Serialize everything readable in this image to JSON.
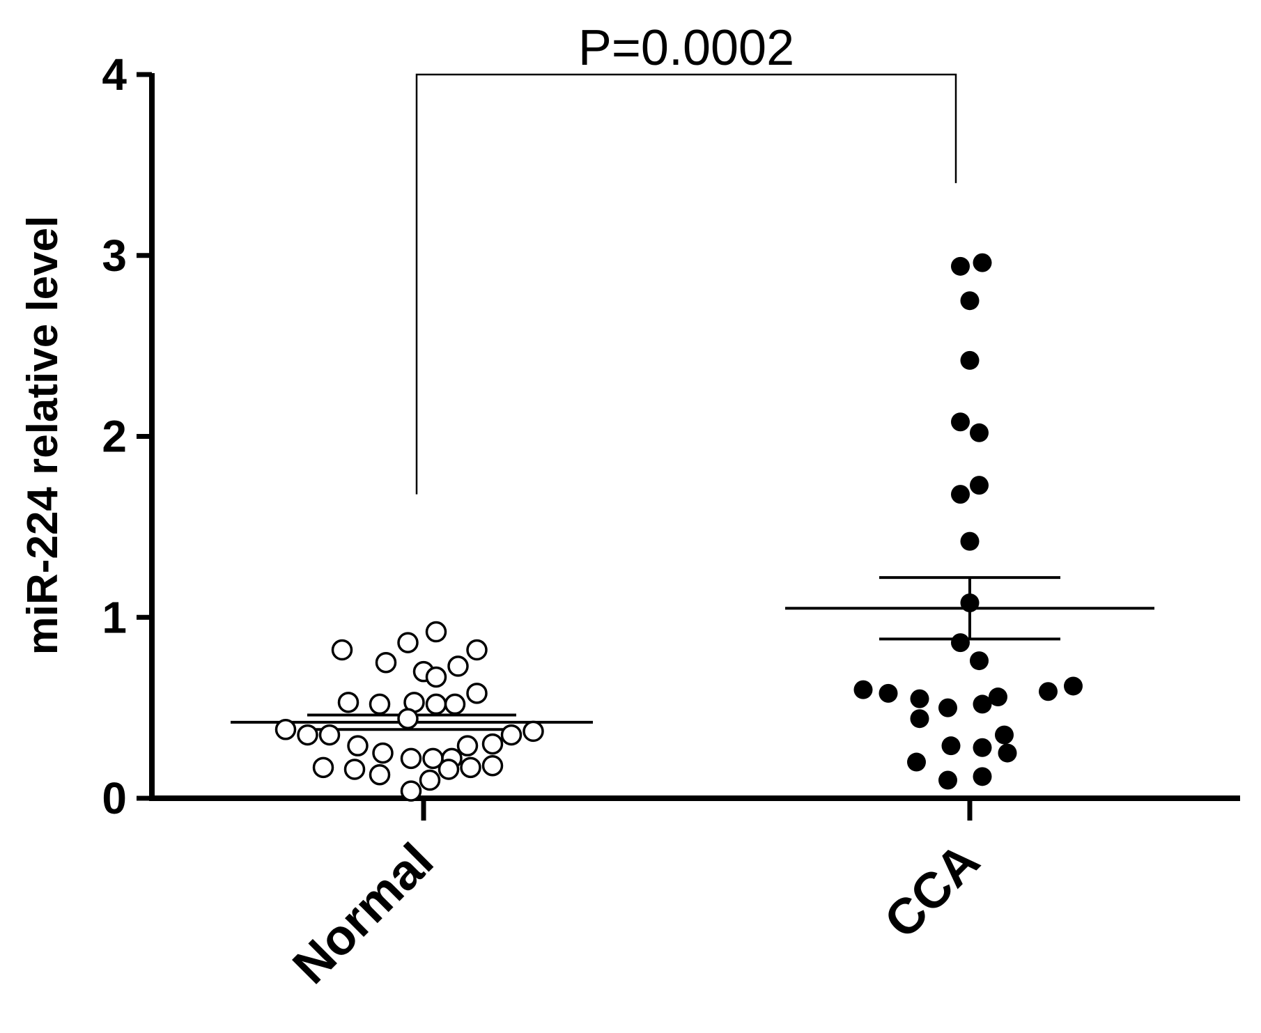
{
  "chart_data": {
    "type": "scatter",
    "subtype": "dot-plot",
    "title": "",
    "xlabel": "",
    "ylabel": "miR-224 relative level",
    "categories": [
      "Normal",
      "CCA"
    ],
    "ylim": [
      0,
      4
    ],
    "yticks": [
      0,
      1,
      2,
      3,
      4
    ],
    "grid": false,
    "legend": "none",
    "series": [
      {
        "category": "Normal",
        "marker": "open-circle",
        "mean": 0.42,
        "sem_low": 0.38,
        "sem_high": 0.46,
        "points": [
          {
            "dx": -22,
            "y": 0.82
          },
          {
            "dx": -8,
            "y": 0.75
          },
          {
            "dx": -1,
            "y": 0.86
          },
          {
            "dx": 4,
            "y": 0.7
          },
          {
            "dx": 8,
            "y": 0.92
          },
          {
            "dx": 8,
            "y": 0.67
          },
          {
            "dx": 15,
            "y": 0.73
          },
          {
            "dx": 21,
            "y": 0.82
          },
          {
            "dx": -20,
            "y": 0.53
          },
          {
            "dx": -10,
            "y": 0.52
          },
          {
            "dx": 1,
            "y": 0.53
          },
          {
            "dx": 8,
            "y": 0.52
          },
          {
            "dx": 14,
            "y": 0.52
          },
          {
            "dx": 21,
            "y": 0.58
          },
          {
            "dx": -1,
            "y": 0.44
          },
          {
            "dx": -40,
            "y": 0.38
          },
          {
            "dx": -33,
            "y": 0.35
          },
          {
            "dx": -26,
            "y": 0.35
          },
          {
            "dx": 32,
            "y": 0.35
          },
          {
            "dx": 39,
            "y": 0.37
          },
          {
            "dx": -17,
            "y": 0.29
          },
          {
            "dx": 18,
            "y": 0.29
          },
          {
            "dx": 26,
            "y": 0.3
          },
          {
            "dx": -9,
            "y": 0.25
          },
          {
            "dx": 0,
            "y": 0.22
          },
          {
            "dx": 7,
            "y": 0.22
          },
          {
            "dx": 13,
            "y": 0.22
          },
          {
            "dx": -28,
            "y": 0.17
          },
          {
            "dx": -18,
            "y": 0.16
          },
          {
            "dx": -10,
            "y": 0.13
          },
          {
            "dx": 12,
            "y": 0.16
          },
          {
            "dx": 19,
            "y": 0.17
          },
          {
            "dx": 26,
            "y": 0.18
          },
          {
            "dx": 6,
            "y": 0.1
          },
          {
            "dx": 0,
            "y": 0.04
          }
        ]
      },
      {
        "category": "CCA",
        "marker": "filled-circle",
        "mean": 1.05,
        "sem_low": 0.88,
        "sem_high": 1.22,
        "points": [
          {
            "dx": -3,
            "y": 2.94
          },
          {
            "dx": 4,
            "y": 2.96
          },
          {
            "dx": 0,
            "y": 2.75
          },
          {
            "dx": 0,
            "y": 2.42
          },
          {
            "dx": -3,
            "y": 2.08
          },
          {
            "dx": 3,
            "y": 2.02
          },
          {
            "dx": -3,
            "y": 1.68
          },
          {
            "dx": 3,
            "y": 1.73
          },
          {
            "dx": 0,
            "y": 1.42
          },
          {
            "dx": 0,
            "y": 1.08
          },
          {
            "dx": -3,
            "y": 0.86
          },
          {
            "dx": 3,
            "y": 0.76
          },
          {
            "dx": -34,
            "y": 0.6
          },
          {
            "dx": -26,
            "y": 0.58
          },
          {
            "dx": -16,
            "y": 0.55
          },
          {
            "dx": 9,
            "y": 0.56
          },
          {
            "dx": 25,
            "y": 0.59
          },
          {
            "dx": 33,
            "y": 0.62
          },
          {
            "dx": -7,
            "y": 0.5
          },
          {
            "dx": 4,
            "y": 0.52
          },
          {
            "dx": -16,
            "y": 0.44
          },
          {
            "dx": 11,
            "y": 0.35
          },
          {
            "dx": -6,
            "y": 0.29
          },
          {
            "dx": 4,
            "y": 0.28
          },
          {
            "dx": 12,
            "y": 0.25
          },
          {
            "dx": -17,
            "y": 0.2
          },
          {
            "dx": -7,
            "y": 0.1
          },
          {
            "dx": 4,
            "y": 0.12
          }
        ]
      }
    ],
    "annotations": [
      {
        "type": "bracket",
        "from": "Normal",
        "to": "CCA",
        "y": 4.0,
        "left_end": 1.68,
        "right_end": 3.4,
        "text": "P=0.0002"
      }
    ]
  }
}
